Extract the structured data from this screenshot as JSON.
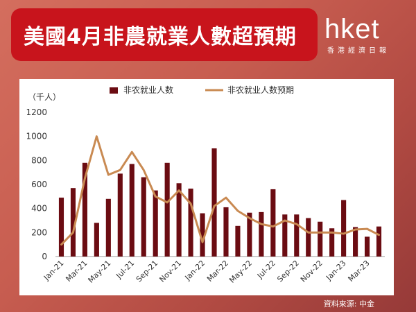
{
  "header": {
    "title": "美國4月非農就業人數超預期",
    "logo_main": "hket",
    "logo_sub": "香港經濟日報"
  },
  "source": "資料來源: 中金",
  "colors": {
    "bar": "#6b0c12",
    "line": "#c98a52",
    "title_bg": "#c8141c"
  },
  "chart_data": {
    "type": "bar",
    "unit_label": "（千人）",
    "ylim": [
      0,
      1200
    ],
    "yticks": [
      0,
      200,
      400,
      600,
      800,
      1000,
      1200
    ],
    "categories": [
      "Jan-21",
      "Feb-21",
      "Mar-21",
      "Apr-21",
      "May-21",
      "Jun-21",
      "Jul-21",
      "Aug-21",
      "Sep-21",
      "Oct-21",
      "Nov-21",
      "Dec-21",
      "Jan-22",
      "Feb-22",
      "Mar-22",
      "Apr-22",
      "May-22",
      "Jun-22",
      "Jul-22",
      "Aug-22",
      "Sep-22",
      "Oct-22",
      "Nov-22",
      "Dec-22",
      "Jan-23",
      "Feb-23",
      "Mar-23",
      "Apr-23"
    ],
    "xtick_labels": [
      "Jan-21",
      "Mar-21",
      "May-21",
      "Jul-21",
      "Sep-21",
      "Nov-21",
      "Jan-22",
      "Mar-22",
      "May-22",
      "Jul-22",
      "Sep-22",
      "Nov-22",
      "Jan-23",
      "Mar-23"
    ],
    "legend_position": "top",
    "series": [
      {
        "name": "非农就业人数",
        "kind": "bar",
        "values": [
          490,
          570,
          780,
          280,
          480,
          690,
          770,
          660,
          550,
          780,
          610,
          565,
          360,
          900,
          410,
          255,
          365,
          370,
          560,
          350,
          350,
          320,
          290,
          235,
          470,
          245,
          165,
          250
        ]
      },
      {
        "name": "非农就业人数预期",
        "kind": "line",
        "values": [
          100,
          200,
          650,
          1000,
          680,
          720,
          870,
          720,
          500,
          450,
          550,
          440,
          120,
          420,
          490,
          380,
          320,
          270,
          250,
          300,
          270,
          200,
          200,
          200,
          190,
          225,
          230,
          180
        ]
      }
    ]
  }
}
